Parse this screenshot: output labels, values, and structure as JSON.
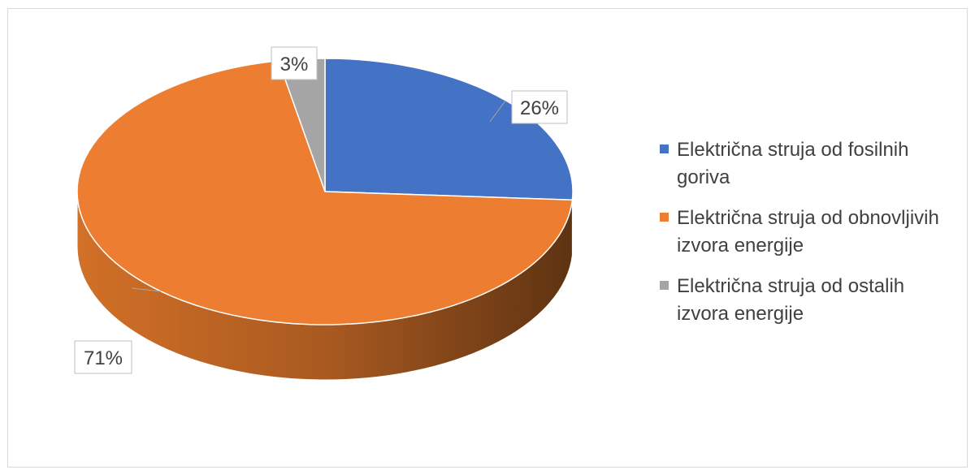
{
  "chart_data": {
    "type": "pie",
    "title": "",
    "categories": [
      "Električna struja od fosilnih goriva",
      "Električna struja od obnovljivih izvora energije",
      "Električna struja od ostalih izvora energije"
    ],
    "values": [
      26,
      71,
      3
    ],
    "labels": [
      "26%",
      "71%",
      "3%"
    ],
    "colors": [
      "#4472C4",
      "#ED7D31",
      "#A5A5A5"
    ],
    "legend_position": "right",
    "style": "3d"
  }
}
